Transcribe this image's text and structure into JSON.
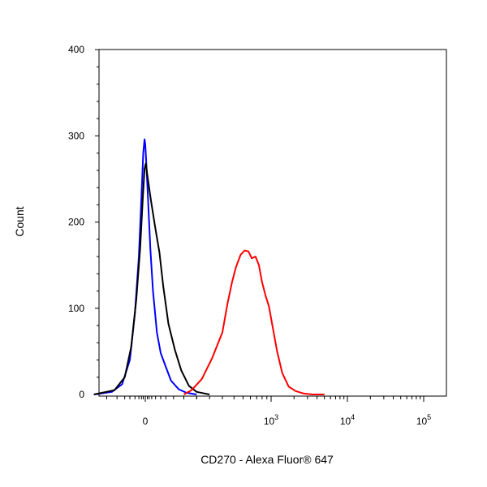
{
  "chart_data": {
    "type": "line",
    "title": "",
    "xlabel": "CD270 - Alexa Fluor® 647",
    "ylabel": "Count",
    "x_scale": "biexponential",
    "xlim": [
      -300,
      150000
    ],
    "ylim": [
      0,
      400
    ],
    "y_ticks": [
      {
        "value": 0,
        "label": "0"
      },
      {
        "value": 100,
        "label": "100"
      },
      {
        "value": 200,
        "label": "200"
      },
      {
        "value": 300,
        "label": "300"
      },
      {
        "value": 400,
        "label": "400"
      }
    ],
    "x_ticks": [
      {
        "value": 0,
        "label": "0",
        "exp": ""
      },
      {
        "value": 1000,
        "label": "10",
        "exp": "3"
      },
      {
        "value": 10000,
        "label": "10",
        "exp": "4"
      },
      {
        "value": 100000,
        "label": "10",
        "exp": "5"
      }
    ],
    "grid": false,
    "legend": "none",
    "series": [
      {
        "color": "#0000ff",
        "x": [
          -200,
          -130,
          -90,
          -60,
          -40,
          -25,
          -15,
          -8,
          -3,
          0,
          5,
          12,
          20,
          30,
          45,
          60,
          80,
          100,
          130,
          160,
          200
        ],
        "y": [
          0,
          3,
          12,
          40,
          95,
          160,
          230,
          280,
          296,
          290,
          262,
          218,
          168,
          120,
          72,
          48,
          32,
          16,
          6,
          2,
          0
        ]
      },
      {
        "color": "#000000",
        "x": [
          -200,
          -120,
          -80,
          -55,
          -35,
          -20,
          -10,
          -3,
          2,
          10,
          22,
          38,
          55,
          70,
          90,
          115,
          140,
          170,
          200,
          250
        ],
        "y": [
          0,
          5,
          20,
          55,
          110,
          170,
          225,
          262,
          268,
          250,
          225,
          195,
          165,
          125,
          82,
          52,
          28,
          10,
          3,
          0
        ]
      },
      {
        "color": "#ff0000",
        "x": [
          150,
          180,
          220,
          260,
          300,
          340,
          380,
          420,
          470,
          520,
          570,
          620,
          680,
          740,
          800,
          870,
          950,
          1050,
          1200,
          1400,
          1700,
          2100,
          2700,
          3500,
          5000
        ],
        "y": [
          0,
          5,
          18,
          42,
          72,
          105,
          130,
          148,
          162,
          167,
          166,
          158,
          160,
          150,
          130,
          115,
          102,
          78,
          50,
          25,
          9,
          4,
          1,
          0,
          0
        ]
      }
    ]
  }
}
